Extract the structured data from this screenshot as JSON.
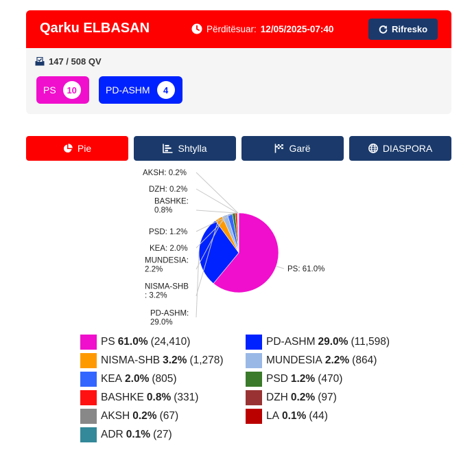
{
  "header": {
    "title": "Qarku ELBASAN",
    "updated_label": "Përditësuar:",
    "updated_value": "12/05/2025-07:40",
    "refresh_label": "Rifresko"
  },
  "summary": {
    "qv": "147 / 508 QV",
    "parties": [
      {
        "label": "PS",
        "count": "10",
        "color": "#f00fcc"
      },
      {
        "label": "PD-ASHM",
        "count": "4",
        "color": "#0022ff"
      }
    ]
  },
  "tabs": [
    {
      "label": "Pie",
      "icon": "pie-chart-icon",
      "active": true
    },
    {
      "label": "Shtylla",
      "icon": "bar-chart-icon",
      "active": false
    },
    {
      "label": "Garë",
      "icon": "flag-icon",
      "active": false
    },
    {
      "label": "DIASPORA",
      "icon": "globe-icon",
      "active": false
    }
  ],
  "chart_data": {
    "type": "pie",
    "slices": [
      {
        "name": "PS",
        "pct": 61.0,
        "votes": "24,410",
        "color": "#f00fcc"
      },
      {
        "name": "PD-ASHM",
        "pct": 29.0,
        "votes": "11,598",
        "color": "#0022ff"
      },
      {
        "name": "NISMA-SHB",
        "pct": 3.2,
        "votes": "1,278",
        "color": "#ff9900"
      },
      {
        "name": "MUNDESIA",
        "pct": 2.2,
        "votes": "864",
        "color": "#99b8e6"
      },
      {
        "name": "KEA",
        "pct": 2.0,
        "votes": "805",
        "color": "#3366ff"
      },
      {
        "name": "PSD",
        "pct": 1.2,
        "votes": "470",
        "color": "#3a7a2a"
      },
      {
        "name": "BASHKE",
        "pct": 0.8,
        "votes": "331",
        "color": "#ff1111"
      },
      {
        "name": "DZH",
        "pct": 0.2,
        "votes": "97",
        "color": "#993333"
      },
      {
        "name": "AKSH",
        "pct": 0.2,
        "votes": "67",
        "color": "#888888"
      },
      {
        "name": "LA",
        "pct": 0.1,
        "votes": "44",
        "color": "#bb0000"
      },
      {
        "name": "ADR",
        "pct": 0.1,
        "votes": "27",
        "color": "#338899"
      }
    ],
    "labels": [
      {
        "name": "PS",
        "lines": [
          "PS: 61.0%"
        ]
      },
      {
        "name": "PD-ASHM",
        "lines": [
          "PD-ASHM:",
          "29.0%"
        ]
      },
      {
        "name": "NISMA-SHB",
        "lines": [
          "NISMA-SHB",
          ": 3.2%"
        ]
      },
      {
        "name": "MUNDESIA",
        "lines": [
          "MUNDESIA:",
          "2.2%"
        ]
      },
      {
        "name": "KEA",
        "lines": [
          "KEA: 2.0%"
        ]
      },
      {
        "name": "PSD",
        "lines": [
          "PSD: 1.2%"
        ]
      },
      {
        "name": "BASHKE",
        "lines": [
          "BASHKE:",
          "0.8%"
        ]
      },
      {
        "name": "DZH",
        "lines": [
          "DZH: 0.2%"
        ]
      },
      {
        "name": "AKSH",
        "lines": [
          "AKSH: 0.2%"
        ]
      }
    ]
  }
}
